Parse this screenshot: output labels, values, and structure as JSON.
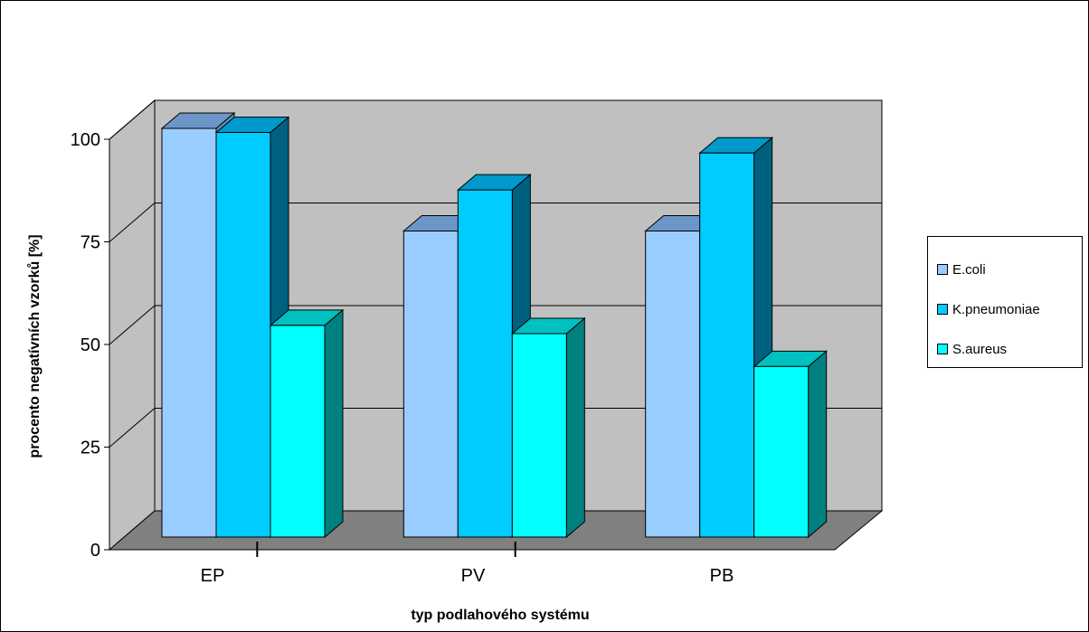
{
  "chart_data": {
    "type": "bar",
    "style": "3d-clustered-column",
    "categories": [
      "EP",
      "PV",
      "PB"
    ],
    "series": [
      {
        "name": "E.coli",
        "values": [
          100,
          75,
          75
        ],
        "color": "#99ccff",
        "top": "#6c95c8",
        "side": "#6a8fb8"
      },
      {
        "name": "K.pneumoniae",
        "values": [
          99,
          85,
          94
        ],
        "color": "#00ccff",
        "top": "#0099cc",
        "side": "#006080"
      },
      {
        "name": "S.aureus",
        "values": [
          52,
          50,
          42
        ],
        "color": "#00ffff",
        "top": "#00c0c0",
        "side": "#008080"
      }
    ],
    "xlabel": "typ podlahového systému",
    "ylabel": "procento negatívních vzorků [%]",
    "ylim": [
      0,
      100
    ],
    "yticks": [
      0,
      25,
      50,
      75,
      100
    ],
    "grid": true,
    "legend": "right",
    "wall_color": "#c0c0c0",
    "floor_color": "#808080"
  }
}
